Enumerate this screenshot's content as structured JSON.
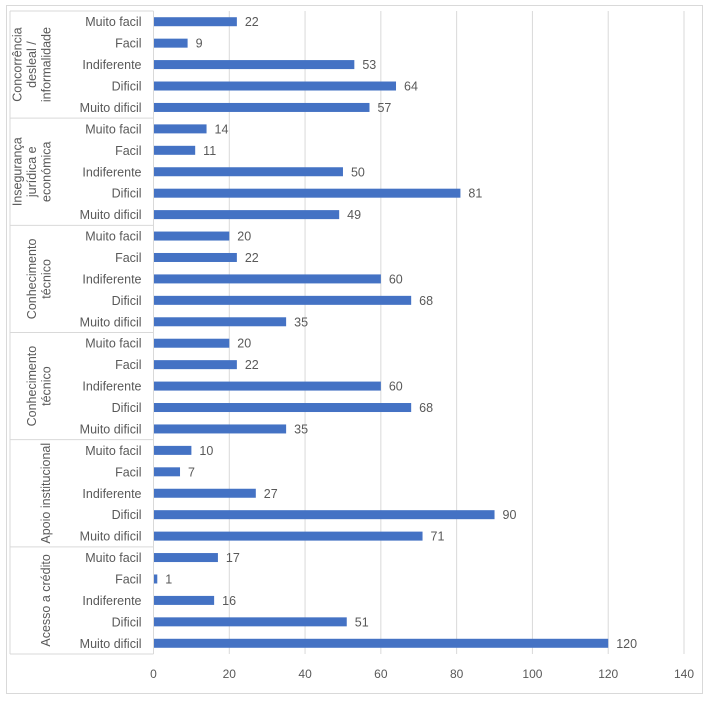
{
  "chart_data": {
    "type": "bar",
    "orientation": "horizontal",
    "title": "",
    "xlabel": "",
    "ylabel": "",
    "xlim": [
      0,
      140
    ],
    "x_ticks": [
      0,
      20,
      40,
      60,
      80,
      100,
      120,
      140
    ],
    "grid": true,
    "bar_color": "#4472C4",
    "groups": [
      {
        "label": "Concorrência desleal / informalidade",
        "label_lines": [
          "Concorrência",
          "desleal /",
          "informalidade"
        ],
        "categories": [
          "Muito facil",
          "Facil",
          "Indiferente",
          "Dificil",
          "Muito dificil"
        ],
        "values": [
          22,
          9,
          53,
          64,
          57
        ]
      },
      {
        "label": "Insegurança jurídica e económica",
        "label_lines": [
          "Insegurança",
          "jurídica e",
          "económica"
        ],
        "categories": [
          "Muito facil",
          "Facil",
          "Indiferente",
          "Dificil",
          "Muito dificil"
        ],
        "values": [
          14,
          11,
          50,
          81,
          49
        ]
      },
      {
        "label": "Conhecimento técnico",
        "label_lines": [
          "Conhecimento",
          "técnico"
        ],
        "categories": [
          "Muito facil",
          "Facil",
          "Indiferente",
          "Dificil",
          "Muito dificil"
        ],
        "values": [
          20,
          22,
          60,
          68,
          35
        ]
      },
      {
        "label": "Conhecimento técnico",
        "label_lines": [
          "Conhecimento",
          "técnico"
        ],
        "categories": [
          "Muito facil",
          "Facil",
          "Indiferente",
          "Dificil",
          "Muito dificil"
        ],
        "values": [
          20,
          22,
          60,
          68,
          35
        ]
      },
      {
        "label": "Apoio institucional",
        "label_lines": [
          "Apoio institucional"
        ],
        "categories": [
          "Muito facil",
          "Facil",
          "Indiferente",
          "Dificil",
          "Muito dificil"
        ],
        "values": [
          10,
          7,
          27,
          90,
          71
        ]
      },
      {
        "label": "Acesso a crédito",
        "label_lines": [
          "Acesso a crédito"
        ],
        "categories": [
          "Muito facil",
          "Facil",
          "Indiferente",
          "Dificil",
          "Muito dificil"
        ],
        "values": [
          17,
          1,
          16,
          51,
          120
        ]
      }
    ]
  }
}
